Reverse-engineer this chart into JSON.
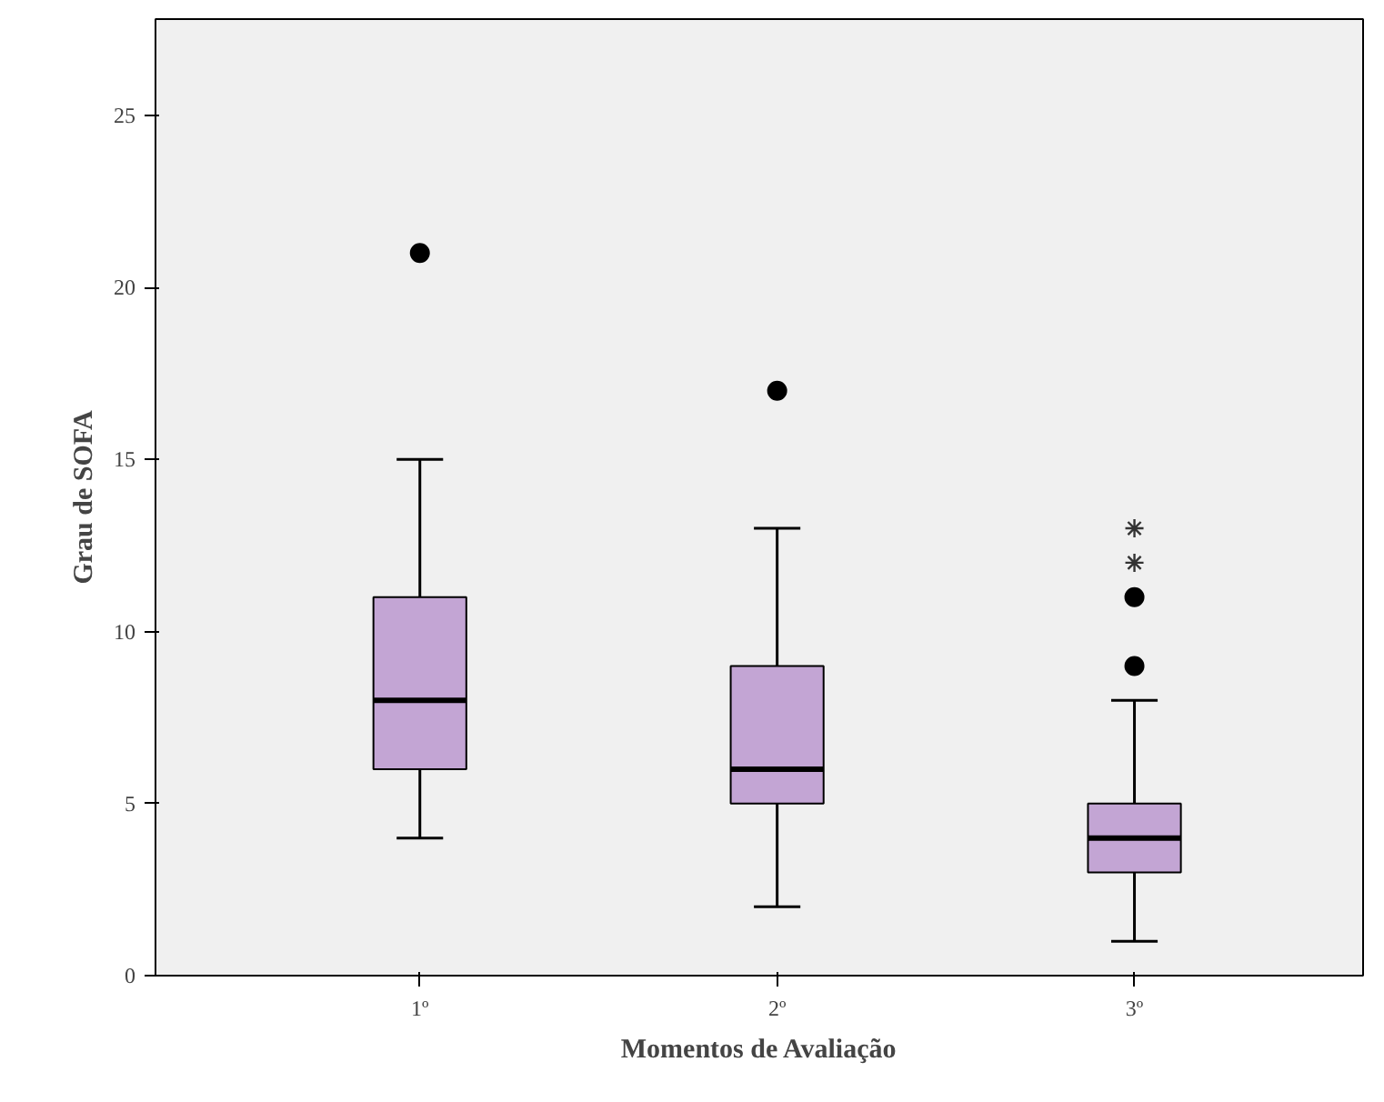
{
  "chart_data": {
    "type": "box",
    "xlabel": "Momentos de Avaliação",
    "ylabel": "Grau de SOFA",
    "categories": [
      "1º",
      "2º",
      "3º"
    ],
    "color": "#c3a5d4",
    "ylim": [
      0,
      27.8
    ],
    "yticks": [
      0,
      5,
      10,
      15,
      20,
      25
    ],
    "grid": false,
    "boxes": [
      {
        "low": 4,
        "q1": 6,
        "median": 8,
        "q3": 11,
        "high": 15,
        "outliers": [
          21
        ]
      },
      {
        "low": 2,
        "q1": 5,
        "median": 6,
        "q3": 9,
        "high": 13,
        "outliers": [
          17
        ]
      },
      {
        "low": 1,
        "q1": 3,
        "median": 4,
        "q3": 5,
        "high": 8,
        "outliers": [
          9,
          11,
          12,
          13
        ]
      }
    ]
  }
}
